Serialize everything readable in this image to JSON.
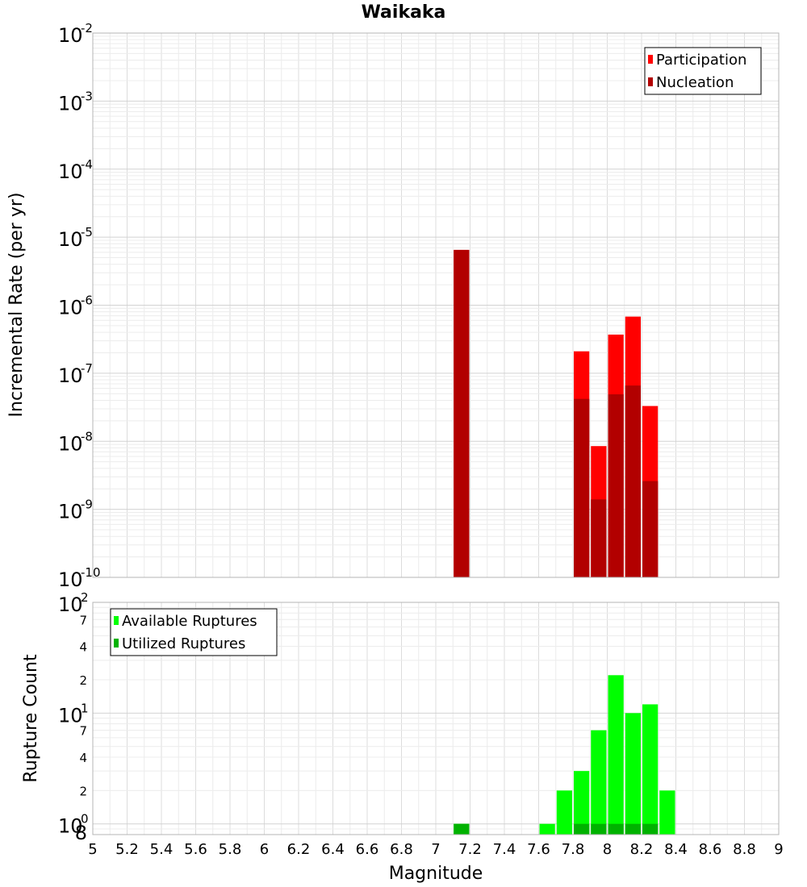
{
  "chart_data": [
    {
      "type": "bar",
      "title": "Waikaka",
      "ylabel": "Incremental Rate (per yr)",
      "yscale": "log",
      "ylim": [
        1e-10,
        0.01
      ],
      "xlim": [
        5,
        9
      ],
      "bin_width": 0.1,
      "y_major_ticks": [
        {
          "base": "10",
          "exp": "-10"
        },
        {
          "base": "10",
          "exp": "-9"
        },
        {
          "base": "10",
          "exp": "-8"
        },
        {
          "base": "10",
          "exp": "-7"
        },
        {
          "base": "10",
          "exp": "-6"
        },
        {
          "base": "10",
          "exp": "-5"
        },
        {
          "base": "10",
          "exp": "-4"
        },
        {
          "base": "10",
          "exp": "-3"
        },
        {
          "base": "10",
          "exp": "-2"
        }
      ],
      "legend": {
        "position": "top-right",
        "entries": [
          "Participation",
          "Nucleation"
        ]
      },
      "colors": {
        "Participation": "#ff0000",
        "Nucleation": "#b20000"
      },
      "series": [
        {
          "name": "Participation",
          "x": [
            7.15,
            7.85,
            7.95,
            8.05,
            8.15,
            8.25
          ],
          "values": [
            6.5e-06,
            2.1e-07,
            8.5e-09,
            3.7e-07,
            6.8e-07,
            3.3e-08
          ]
        },
        {
          "name": "Nucleation",
          "x": [
            7.15,
            7.85,
            7.95,
            8.05,
            8.15,
            8.25
          ],
          "values": [
            6.5e-06,
            4.2e-08,
            1.4e-09,
            4.9e-08,
            6.6e-08,
            2.6e-09
          ]
        }
      ],
      "grid": true
    },
    {
      "type": "bar",
      "xlabel": "Magnitude",
      "ylabel": "Rupture Count",
      "yscale": "log",
      "ylim": [
        0.8,
        100
      ],
      "xlim": [
        5,
        9
      ],
      "bin_width": 0.1,
      "y_major_ticks": [
        {
          "base": "10",
          "exp": "0"
        },
        {
          "base": "10",
          "exp": "1"
        },
        {
          "base": "10",
          "exp": "2"
        }
      ],
      "y_minor_ticks": [
        "8",
        "2",
        "4",
        "7",
        "2",
        "4",
        "7"
      ],
      "x_ticks": [
        "5",
        "5.2",
        "5.4",
        "5.6",
        "5.8",
        "6",
        "6.2",
        "6.4",
        "6.6",
        "6.8",
        "7",
        "7.2",
        "7.4",
        "7.6",
        "7.8",
        "8",
        "8.2",
        "8.4",
        "8.6",
        "8.8",
        "9"
      ],
      "legend": {
        "position": "top-left",
        "entries": [
          "Available Ruptures",
          "Utilized Ruptures"
        ]
      },
      "colors": {
        "Available Ruptures": "#00ff00",
        "Utilized Ruptures": "#00b200"
      },
      "series": [
        {
          "name": "Available Ruptures",
          "x": [
            7.15,
            7.65,
            7.75,
            7.85,
            7.95,
            8.05,
            8.15,
            8.25,
            8.35
          ],
          "values": [
            1,
            1,
            2,
            3,
            7,
            22,
            10,
            12,
            2
          ]
        },
        {
          "name": "Utilized Ruptures",
          "x": [
            7.15,
            7.85,
            7.95,
            8.05,
            8.15,
            8.25
          ],
          "values": [
            1,
            1,
            1,
            1,
            1,
            1
          ]
        }
      ],
      "grid": true
    }
  ]
}
